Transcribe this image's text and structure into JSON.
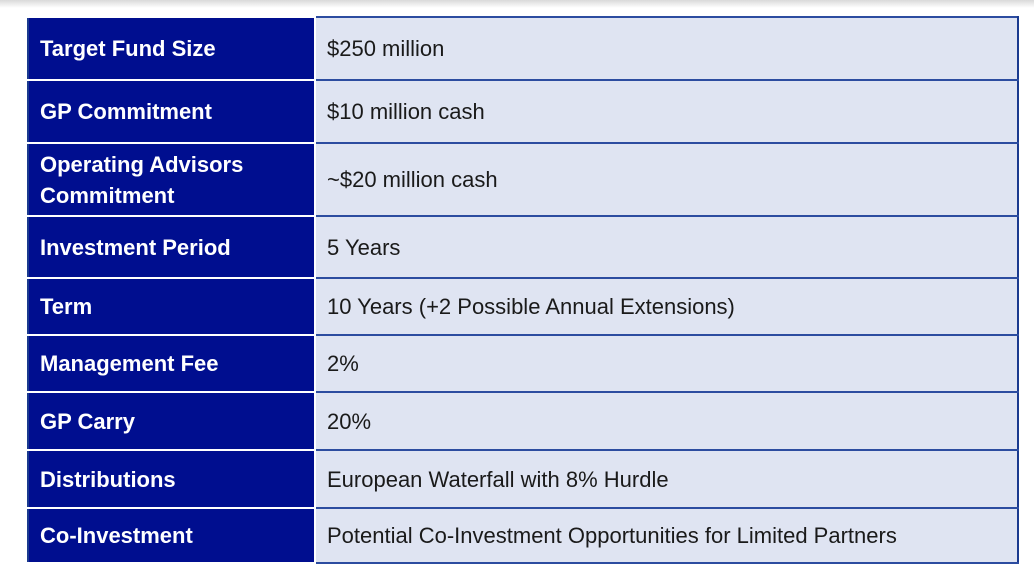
{
  "terms": [
    {
      "label": "Target Fund Size",
      "value": "$250 million"
    },
    {
      "label": "GP Commitment",
      "value": "$10 million cash"
    },
    {
      "label": "Operating Advisors Commitment",
      "value": "~$20 million cash"
    },
    {
      "label": "Investment Period",
      "value": "5 Years"
    },
    {
      "label": "Term",
      "value": "10 Years (+2 Possible Annual Extensions)"
    },
    {
      "label": "Management Fee",
      "value": "2%"
    },
    {
      "label": "GP Carry",
      "value": "20%"
    },
    {
      "label": "Distributions",
      "value": "European Waterfall with 8% Hurdle"
    },
    {
      "label": "Co-Investment",
      "value": "Potential Co-Investment Opportunities for Limited Partners"
    }
  ],
  "colors": {
    "label_background": "#000e8f",
    "label_text": "#ffffff",
    "value_background": "#dfe4f2",
    "value_text": "#1a1a1a",
    "border": "#1a3a8f"
  }
}
